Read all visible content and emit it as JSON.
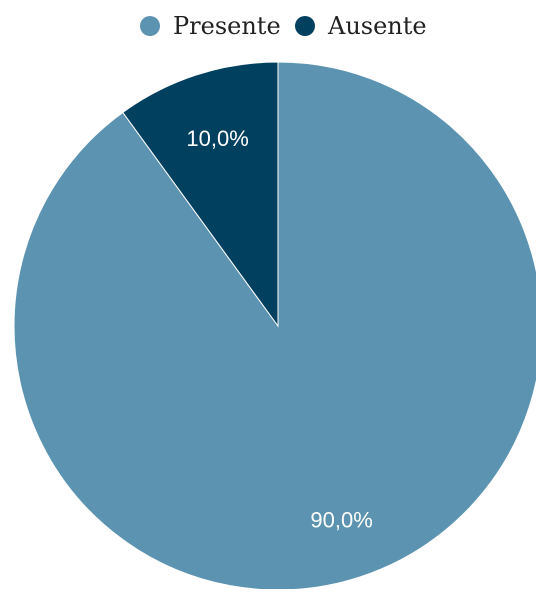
{
  "chart_data": {
    "type": "pie",
    "categories": [
      "Presente",
      "Ausente"
    ],
    "values": [
      90.0,
      10.0
    ],
    "data_labels": [
      "90,0%",
      "10,0%"
    ],
    "colors": [
      "#5b93b0",
      "#02405f"
    ],
    "legend_position": "top"
  }
}
